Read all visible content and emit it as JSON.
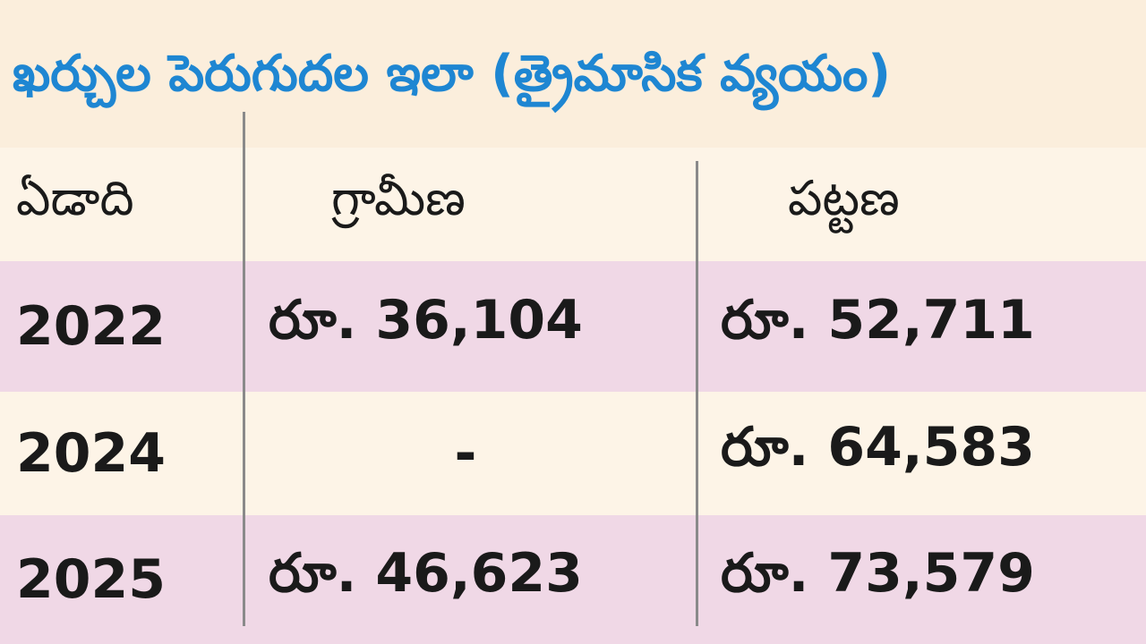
{
  "header": {
    "title": "ఖర్చుల పెరుగుదల ఇలా (త్రైమాసిక వ్యయం)"
  },
  "table": {
    "columns": [
      "ఏడాది",
      "గ్రామీణ",
      "పట్టణ"
    ],
    "rows": [
      [
        "2022",
        "రూ. 36,104",
        "రూ. 52,711"
      ],
      [
        "2024",
        "-",
        "రూ. 64,583"
      ],
      [
        "2025",
        "రూ. 46,623",
        "రూ. 73,579"
      ]
    ]
  }
}
